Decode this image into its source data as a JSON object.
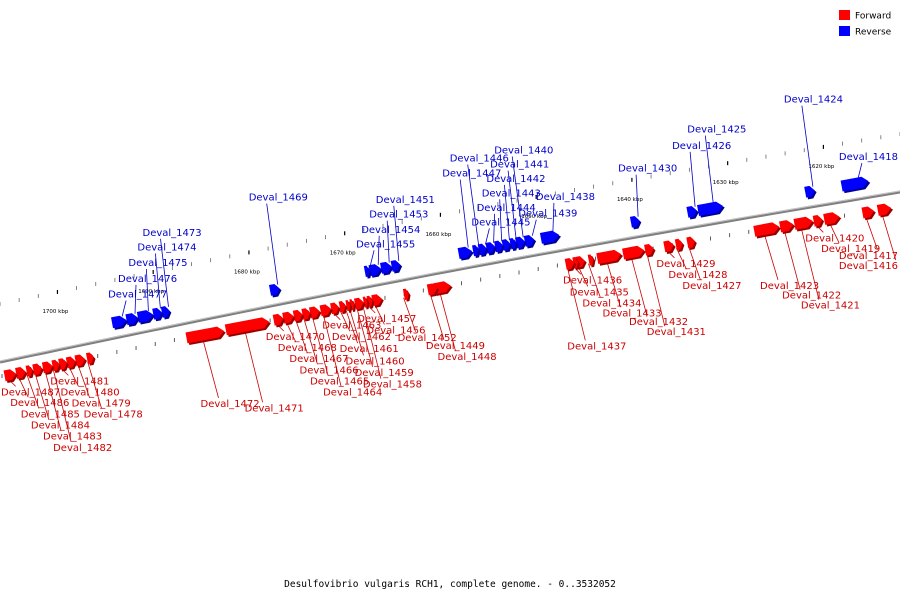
{
  "caption": "Desulfovibrio vulgaris RCH1, complete genome. - 0..3532052",
  "legend": [
    {
      "label": "Forward",
      "color": "#ff0000"
    },
    {
      "label": "Reverse",
      "color": "#0000ff"
    }
  ],
  "colors": {
    "forward": "#ff0000",
    "forward_label": "#cc0000",
    "reverse": "#0000ff",
    "reverse_label": "#0000cc",
    "backbone": "#7f7f7f"
  },
  "axis": {
    "unit": "kbp",
    "start_kbp": 1706,
    "end_kbp": 1612
  },
  "ticks": [
    {
      "kbp": 1700,
      "label": "1700 kbp"
    },
    {
      "kbp": 1690,
      "label": "1690 kbp"
    },
    {
      "kbp": 1680,
      "label": "1680 kbp"
    },
    {
      "kbp": 1670,
      "label": "1670 kbp"
    },
    {
      "kbp": 1660,
      "label": "1660 kbp"
    },
    {
      "kbp": 1650,
      "label": "1650 kbp"
    },
    {
      "kbp": 1640,
      "label": "1640 kbp"
    },
    {
      "kbp": 1630,
      "label": "1630 kbp"
    },
    {
      "kbp": 1620,
      "label": "1620 kbp"
    }
  ],
  "genes": [
    {
      "name": "Deval_1418",
      "strand": "reverse",
      "start": 1617.8,
      "end": 1615.0
    },
    {
      "name": "Deval_1416",
      "strand": "forward",
      "start": 1614.6,
      "end": 1613.2
    },
    {
      "name": "Deval_1417",
      "strand": "forward",
      "start": 1616.2,
      "end": 1615.0
    },
    {
      "name": "Deval_1419",
      "strand": "forward",
      "start": 1620.2,
      "end": 1618.6
    },
    {
      "name": "Deval_1420",
      "strand": "forward",
      "start": 1621.3,
      "end": 1620.4
    },
    {
      "name": "Deval_1421",
      "strand": "forward",
      "start": 1623.3,
      "end": 1621.4
    },
    {
      "name": "Deval_1422",
      "strand": "forward",
      "start": 1624.8,
      "end": 1623.4
    },
    {
      "name": "Deval_1423",
      "strand": "forward",
      "start": 1627.5,
      "end": 1624.9
    },
    {
      "name": "Deval_1424",
      "strand": "reverse",
      "start": 1621.6,
      "end": 1620.6
    },
    {
      "name": "Deval_1425",
      "strand": "reverse",
      "start": 1632.8,
      "end": 1630.2
    },
    {
      "name": "Deval_1426",
      "strand": "reverse",
      "start": 1633.9,
      "end": 1632.9
    },
    {
      "name": "Deval_1427",
      "strand": "forward",
      "start": 1634.5,
      "end": 1633.7
    },
    {
      "name": "Deval_1428",
      "strand": "forward",
      "start": 1635.7,
      "end": 1635.0
    },
    {
      "name": "Deval_1429",
      "strand": "forward",
      "start": 1636.9,
      "end": 1635.9
    },
    {
      "name": "Deval_1430",
      "strand": "reverse",
      "start": 1639.8,
      "end": 1638.9
    },
    {
      "name": "Deval_1431",
      "strand": "forward",
      "start": 1638.9,
      "end": 1638.0
    },
    {
      "name": "Deval_1432",
      "strand": "forward",
      "start": 1641.2,
      "end": 1639.0
    },
    {
      "name": "Deval_1433",
      "strand": "forward",
      "start": 1643.9,
      "end": 1641.4
    },
    {
      "name": "Deval_1434",
      "strand": "forward",
      "start": 1644.8,
      "end": 1644.3
    },
    {
      "name": "Deval_1435",
      "strand": "forward",
      "start": 1646.1,
      "end": 1645.2
    },
    {
      "name": "Deval_1436",
      "strand": "forward",
      "start": 1646.4,
      "end": 1645.9
    },
    {
      "name": "Deval_1437",
      "strand": "forward",
      "start": 1647.2,
      "end": 1646.3
    },
    {
      "name": "Deval_1438",
      "strand": "reverse",
      "start": 1649.2,
      "end": 1647.3
    },
    {
      "name": "Deval_1439",
      "strand": "reverse",
      "start": 1650.9,
      "end": 1649.9
    },
    {
      "name": "Deval_1440",
      "strand": "reverse",
      "start": 1651.8,
      "end": 1650.9
    },
    {
      "name": "Deval_1441",
      "strand": "reverse",
      "start": 1652.4,
      "end": 1651.8
    },
    {
      "name": "Deval_1442",
      "strand": "reverse",
      "start": 1653.2,
      "end": 1652.4
    },
    {
      "name": "Deval_1443",
      "strand": "reverse",
      "start": 1654.0,
      "end": 1653.2
    },
    {
      "name": "Deval_1444",
      "strand": "reverse",
      "start": 1654.9,
      "end": 1654.0
    },
    {
      "name": "Deval_1445",
      "strand": "reverse",
      "start": 1655.7,
      "end": 1654.9
    },
    {
      "name": "Deval_1446",
      "strand": "reverse",
      "start": 1656.3,
      "end": 1655.7
    },
    {
      "name": "Deval_1447",
      "strand": "reverse",
      "start": 1657.8,
      "end": 1656.4
    },
    {
      "name": "Deval_1448",
      "strand": "forward",
      "start": 1661.0,
      "end": 1659.2
    },
    {
      "name": "Deval_1449",
      "strand": "forward",
      "start": 1661.6,
      "end": 1660.6
    },
    {
      "name": "Deval_1451",
      "strand": "reverse",
      "start": 1664.8,
      "end": 1663.9
    },
    {
      "name": "Deval_1452",
      "strand": "forward",
      "start": 1664.1,
      "end": 1663.6
    },
    {
      "name": "Deval_1453",
      "strand": "reverse",
      "start": 1665.9,
      "end": 1664.8
    },
    {
      "name": "Deval_1454",
      "strand": "reverse",
      "start": 1667.1,
      "end": 1665.9
    },
    {
      "name": "Deval_1455",
      "strand": "reverse",
      "start": 1667.6,
      "end": 1667.1
    },
    {
      "name": "Deval_1456",
      "strand": "forward",
      "start": 1667.4,
      "end": 1666.4
    },
    {
      "name": "Deval_1457",
      "strand": "forward",
      "start": 1667.9,
      "end": 1667.4
    },
    {
      "name": "Deval_1458",
      "strand": "forward",
      "start": 1668.3,
      "end": 1667.9
    },
    {
      "name": "Deval_1459",
      "strand": "forward",
      "start": 1669.2,
      "end": 1668.3
    },
    {
      "name": "Deval_1460",
      "strand": "forward",
      "start": 1669.7,
      "end": 1669.3
    },
    {
      "name": "Deval_1461",
      "strand": "forward",
      "start": 1670.1,
      "end": 1669.7
    },
    {
      "name": "Deval_1462",
      "strand": "forward",
      "start": 1670.8,
      "end": 1670.2
    },
    {
      "name": "Deval_1463",
      "strand": "forward",
      "start": 1671.7,
      "end": 1670.9
    },
    {
      "name": "Deval_1464",
      "strand": "forward",
      "start": 1672.8,
      "end": 1671.7
    },
    {
      "name": "Deval_1465",
      "strand": "forward",
      "start": 1673.9,
      "end": 1672.9
    },
    {
      "name": "Deval_1466",
      "strand": "forward",
      "start": 1674.7,
      "end": 1673.9
    },
    {
      "name": "Deval_1467",
      "strand": "forward",
      "start": 1675.6,
      "end": 1674.7
    },
    {
      "name": "Deval_1468",
      "strand": "forward",
      "start": 1676.7,
      "end": 1675.6
    },
    {
      "name": "Deval_1469",
      "strand": "reverse",
      "start": 1677.5,
      "end": 1676.5
    },
    {
      "name": "Deval_1470",
      "strand": "forward",
      "start": 1677.7,
      "end": 1676.7
    },
    {
      "name": "Deval_1471",
      "strand": "forward",
      "start": 1682.7,
      "end": 1678.2
    },
    {
      "name": "Deval_1472",
      "strand": "forward",
      "start": 1686.8,
      "end": 1682.9
    },
    {
      "name": "Deval_1473",
      "strand": "reverse",
      "start": 1688.8,
      "end": 1688.0
    },
    {
      "name": "Deval_1474",
      "strand": "reverse",
      "start": 1689.7,
      "end": 1688.8
    },
    {
      "name": "Deval_1475",
      "strand": "reverse",
      "start": 1691.3,
      "end": 1689.7
    },
    {
      "name": "Deval_1476",
      "strand": "reverse",
      "start": 1692.5,
      "end": 1691.3
    },
    {
      "name": "Deval_1477",
      "strand": "reverse",
      "start": 1694.0,
      "end": 1692.5
    },
    {
      "name": "Deval_1478",
      "strand": "forward",
      "start": 1697.2,
      "end": 1696.5
    },
    {
      "name": "Deval_1479",
      "strand": "forward",
      "start": 1698.4,
      "end": 1697.4
    },
    {
      "name": "Deval_1480",
      "strand": "forward",
      "start": 1699.3,
      "end": 1698.4
    },
    {
      "name": "Deval_1481",
      "strand": "forward",
      "start": 1700.1,
      "end": 1699.3
    },
    {
      "name": "Deval_1482",
      "strand": "forward",
      "start": 1700.8,
      "end": 1700.1
    },
    {
      "name": "Deval_1483",
      "strand": "forward",
      "start": 1701.8,
      "end": 1700.8
    },
    {
      "name": "Deval_1484",
      "strand": "forward",
      "start": 1702.8,
      "end": 1701.9
    },
    {
      "name": "Deval_1485",
      "strand": "forward",
      "start": 1703.5,
      "end": 1702.9
    },
    {
      "name": "Deval_1486",
      "strand": "forward",
      "start": 1704.6,
      "end": 1703.6
    },
    {
      "name": "Deval_1487",
      "strand": "forward",
      "start": 1705.8,
      "end": 1704.6
    }
  ]
}
